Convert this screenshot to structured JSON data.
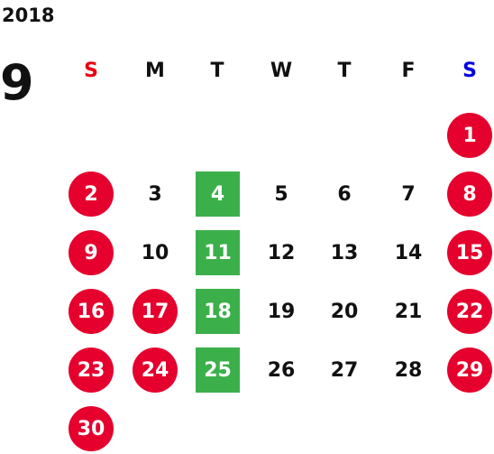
{
  "calendar": {
    "year": "2018",
    "month": "9",
    "weekdays": [
      {
        "label": "S",
        "color": "#e60012"
      },
      {
        "label": "M",
        "color": "#111111"
      },
      {
        "label": "T",
        "color": "#111111"
      },
      {
        "label": "W",
        "color": "#111111"
      },
      {
        "label": "T",
        "color": "#111111"
      },
      {
        "label": "F",
        "color": "#111111"
      },
      {
        "label": "S",
        "color": "#0000e6"
      }
    ],
    "holiday_color": "#e5002d",
    "special_color": "#3bb04a",
    "weeks": [
      [
        null,
        null,
        null,
        null,
        null,
        null,
        {
          "day": "1",
          "type": "holiday"
        }
      ],
      [
        {
          "day": "2",
          "type": "holiday"
        },
        {
          "day": "3",
          "type": "normal"
        },
        {
          "day": "4",
          "type": "special"
        },
        {
          "day": "5",
          "type": "normal"
        },
        {
          "day": "6",
          "type": "normal"
        },
        {
          "day": "7",
          "type": "normal"
        },
        {
          "day": "8",
          "type": "holiday"
        }
      ],
      [
        {
          "day": "9",
          "type": "holiday"
        },
        {
          "day": "10",
          "type": "normal"
        },
        {
          "day": "11",
          "type": "special"
        },
        {
          "day": "12",
          "type": "normal"
        },
        {
          "day": "13",
          "type": "normal"
        },
        {
          "day": "14",
          "type": "normal"
        },
        {
          "day": "15",
          "type": "holiday"
        }
      ],
      [
        {
          "day": "16",
          "type": "holiday"
        },
        {
          "day": "17",
          "type": "holiday"
        },
        {
          "day": "18",
          "type": "special"
        },
        {
          "day": "19",
          "type": "normal"
        },
        {
          "day": "20",
          "type": "normal"
        },
        {
          "day": "21",
          "type": "normal"
        },
        {
          "day": "22",
          "type": "holiday"
        }
      ],
      [
        {
          "day": "23",
          "type": "holiday"
        },
        {
          "day": "24",
          "type": "holiday"
        },
        {
          "day": "25",
          "type": "special"
        },
        {
          "day": "26",
          "type": "normal"
        },
        {
          "day": "27",
          "type": "normal"
        },
        {
          "day": "28",
          "type": "normal"
        },
        {
          "day": "29",
          "type": "holiday"
        }
      ],
      [
        {
          "day": "30",
          "type": "holiday"
        },
        null,
        null,
        null,
        null,
        null,
        null
      ]
    ]
  }
}
